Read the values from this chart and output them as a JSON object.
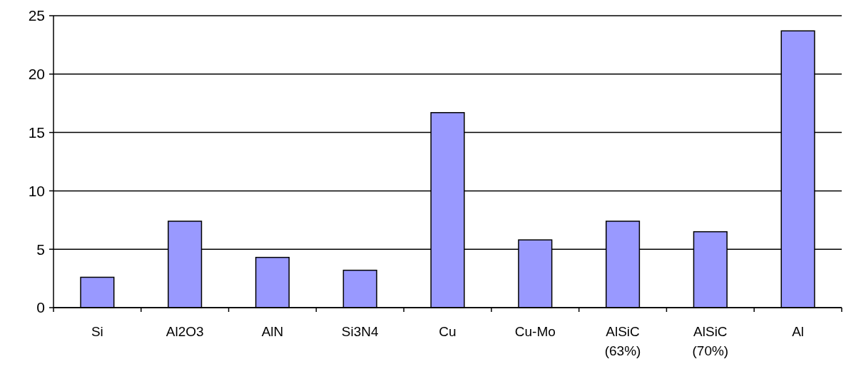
{
  "chart_data": {
    "type": "bar",
    "categories": [
      "Si",
      "Al2O3",
      "AlN",
      "Si3N4",
      "Cu",
      "Cu-Mo",
      "AlSiC\n(63%)",
      "AlSiC\n(70%)",
      "Al"
    ],
    "values": [
      2.6,
      7.4,
      4.3,
      3.2,
      16.7,
      5.8,
      7.4,
      6.5,
      23.7
    ],
    "color": "#9999ff",
    "ylim": [
      0,
      25
    ],
    "yticks": [
      0,
      5,
      10,
      15,
      20,
      25
    ],
    "grid": "y"
  }
}
